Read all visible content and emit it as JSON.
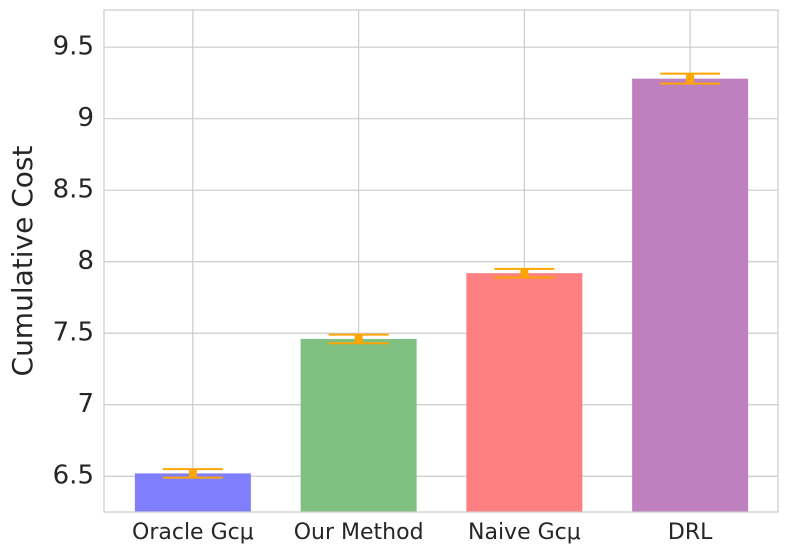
{
  "chart_data": {
    "type": "bar",
    "y_label": "Cumulative Cost",
    "categories": [
      "Oracle Gcμ",
      "Our Method",
      "Naive Gcμ",
      "DRL"
    ],
    "values": [
      6.52,
      7.46,
      7.92,
      9.28
    ],
    "errors": [
      0.03,
      0.03,
      0.03,
      0.035
    ],
    "colors": [
      "#8080ff",
      "#80c080",
      "#ff8080",
      "#bf80bf"
    ],
    "error_color": "#ffa500",
    "ylim": [
      6.25,
      9.76
    ],
    "yticks": [
      6.5,
      7.0,
      7.5,
      8.0,
      8.5,
      9.0,
      9.5
    ],
    "grid": true
  }
}
